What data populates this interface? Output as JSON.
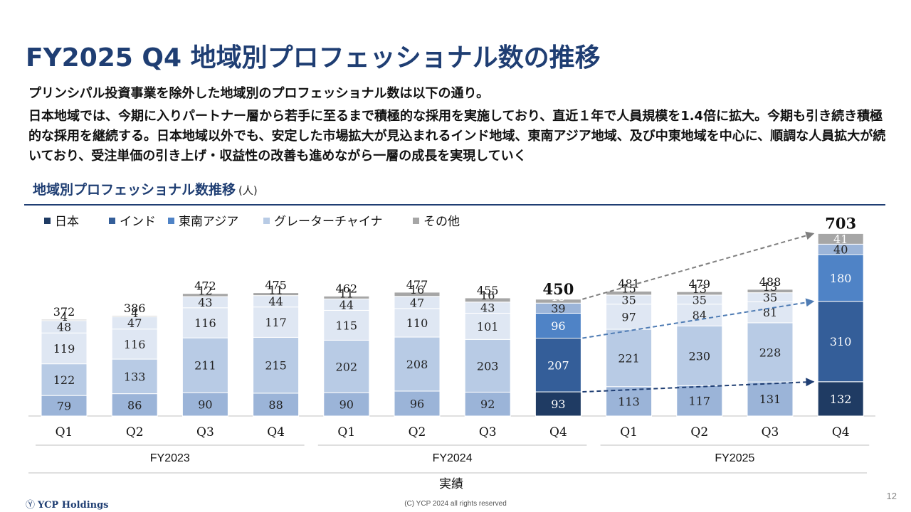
{
  "header": {
    "title": "FY2025 Q4 地域別プロフェッショナル数の推移",
    "lead1": "プリンシパル投資事業を除外した地域別のプロフェッショナル数は以下の通り。",
    "lead2": "日本地域では、今期に入りパートナー層から若手に至るまで積極的な採用を実施しており、直近１年で人員規模を1.4倍に拡大。今期も引き続き積極的な採用を継続する。日本地域以外でも、安定した市場拡大が見込まれるインド地域、東南アジア地域、及び中東地域を中心に、順調な人員拡大が続いており、受注単価の引き上げ・収益性の改善も進めながら一層の成長を実現していく"
  },
  "section": {
    "title": "地域別プロフェッショナル数推移",
    "unit": "(人)"
  },
  "footer": {
    "brand": "YCP Holdings",
    "brand_mark": "Ⓨ",
    "copyright": "(C) YCP 2024 all rights reserved",
    "page_number": "12"
  },
  "colors": {
    "japan": "#1f3b63",
    "india": "#345e99",
    "sea": "#4f83c6",
    "gc_q1": "#9bb4d8",
    "gc": "#b8cbe5",
    "gc_q3": "#dfe7f3",
    "other": "#a6a6a6",
    "arrow_grey": "#7f7f7f",
    "arrow_blue": "#4f7cb4",
    "arrow_navy": "#1f3e73"
  },
  "chart_data": {
    "type": "bar",
    "stacked": true,
    "categories": [
      "Q1",
      "Q2",
      "Q3",
      "Q4",
      "Q1",
      "Q2",
      "Q3",
      "Q4",
      "Q1",
      "Q2",
      "Q3",
      "Q4"
    ],
    "groups": [
      {
        "label": "FY2023",
        "from": 0,
        "to": 3
      },
      {
        "label": "FY2024",
        "from": 4,
        "to": 7
      },
      {
        "label": "FY2025",
        "from": 8,
        "to": 11
      }
    ],
    "bottom_label": "実績",
    "legend": [
      "日本",
      "インド",
      "東南アジア",
      "グレーターチャイナ",
      "その他"
    ],
    "totals": [
      372,
      386,
      472,
      475,
      462,
      477,
      455,
      450,
      481,
      479,
      488,
      703
    ],
    "bars": [
      {
        "segments": [
          {
            "v": 79,
            "c": "gc_q1"
          },
          {
            "v": 122,
            "c": "gc"
          },
          {
            "v": 119,
            "c": "gc_q3"
          },
          {
            "v": 48,
            "c": "gc_q3"
          },
          {
            "v": 4,
            "c": "other"
          }
        ]
      },
      {
        "segments": [
          {
            "v": 86,
            "c": "gc_q1"
          },
          {
            "v": 133,
            "c": "gc"
          },
          {
            "v": 116,
            "c": "gc_q3"
          },
          {
            "v": 47,
            "c": "gc_q3"
          },
          {
            "v": 4,
            "c": "other"
          }
        ]
      },
      {
        "segments": [
          {
            "v": 90,
            "c": "gc_q1"
          },
          {
            "v": 211,
            "c": "gc"
          },
          {
            "v": 116,
            "c": "gc_q3"
          },
          {
            "v": 43,
            "c": "gc_q3"
          },
          {
            "v": 12,
            "c": "other"
          }
        ]
      },
      {
        "segments": [
          {
            "v": 88,
            "c": "gc_q1"
          },
          {
            "v": 215,
            "c": "gc"
          },
          {
            "v": 117,
            "c": "gc_q3"
          },
          {
            "v": 44,
            "c": "gc_q3"
          },
          {
            "v": 11,
            "c": "other"
          }
        ]
      },
      {
        "segments": [
          {
            "v": 90,
            "c": "gc_q1"
          },
          {
            "v": 202,
            "c": "gc"
          },
          {
            "v": 115,
            "c": "gc_q3"
          },
          {
            "v": 44,
            "c": "gc_q3"
          },
          {
            "v": 11,
            "c": "other"
          }
        ]
      },
      {
        "segments": [
          {
            "v": 96,
            "c": "gc_q1"
          },
          {
            "v": 208,
            "c": "gc"
          },
          {
            "v": 110,
            "c": "gc_q3"
          },
          {
            "v": 47,
            "c": "gc_q3"
          },
          {
            "v": 16,
            "c": "other"
          }
        ]
      },
      {
        "segments": [
          {
            "v": 92,
            "c": "gc_q1"
          },
          {
            "v": 203,
            "c": "gc"
          },
          {
            "v": 101,
            "c": "gc_q3"
          },
          {
            "v": 43,
            "c": "gc_q3"
          },
          {
            "v": 16,
            "c": "other"
          }
        ]
      },
      {
        "segments": [
          {
            "v": 93,
            "c": "japan"
          },
          {
            "v": 207,
            "c": "india"
          },
          {
            "v": 96,
            "c": "sea"
          },
          {
            "v": 39,
            "c": "gc_q1"
          },
          {
            "v": 15,
            "c": "other"
          }
        ]
      },
      {
        "segments": [
          {
            "v": 113,
            "c": "gc_q1"
          },
          {
            "v": 221,
            "c": "gc"
          },
          {
            "v": 97,
            "c": "gc_q3"
          },
          {
            "v": 35,
            "c": "gc_q3"
          },
          {
            "v": 15,
            "c": "other"
          }
        ]
      },
      {
        "segments": [
          {
            "v": 117,
            "c": "gc_q1"
          },
          {
            "v": 230,
            "c": "gc"
          },
          {
            "v": 84,
            "c": "gc_q3"
          },
          {
            "v": 35,
            "c": "gc_q3"
          },
          {
            "v": 13,
            "c": "other"
          }
        ]
      },
      {
        "segments": [
          {
            "v": 131,
            "c": "gc_q1"
          },
          {
            "v": 228,
            "c": "gc"
          },
          {
            "v": 81,
            "c": "gc_q3"
          },
          {
            "v": 35,
            "c": "gc_q3"
          },
          {
            "v": 13,
            "c": "other"
          }
        ]
      },
      {
        "segments": [
          {
            "v": 132,
            "c": "japan"
          },
          {
            "v": 310,
            "c": "india"
          },
          {
            "v": 180,
            "c": "sea"
          },
          {
            "v": 40,
            "c": "gc_q1"
          },
          {
            "v": 41,
            "c": "other"
          }
        ]
      }
    ],
    "emphasized_bars": [
      7,
      11
    ],
    "arrows": [
      {
        "from_bar": 7,
        "to_bar": 11,
        "level": "total",
        "color": "arrow_grey"
      },
      {
        "from_bar": 7,
        "to_bar": 11,
        "level": "india_top",
        "color": "arrow_blue"
      },
      {
        "from_bar": 7,
        "to_bar": 11,
        "level": "japan_top",
        "color": "arrow_navy"
      }
    ]
  }
}
